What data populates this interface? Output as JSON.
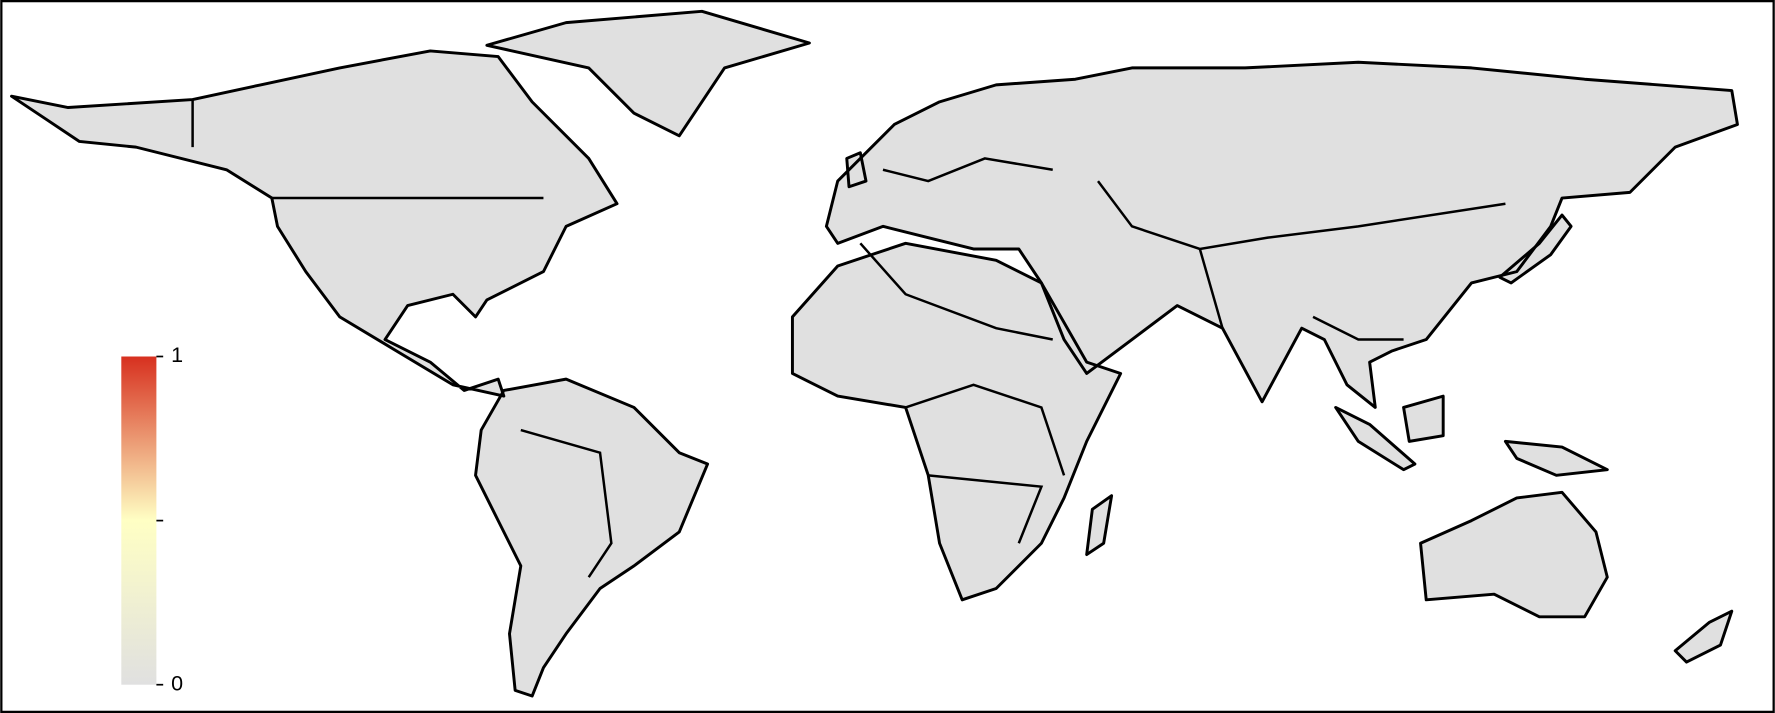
{
  "colorbar": {
    "range": [
      0,
      1
    ],
    "ticks": [
      0,
      1
    ],
    "colors": [
      "#e0e0e0",
      "#ffffc4",
      "#d7301f"
    ]
  }
}
